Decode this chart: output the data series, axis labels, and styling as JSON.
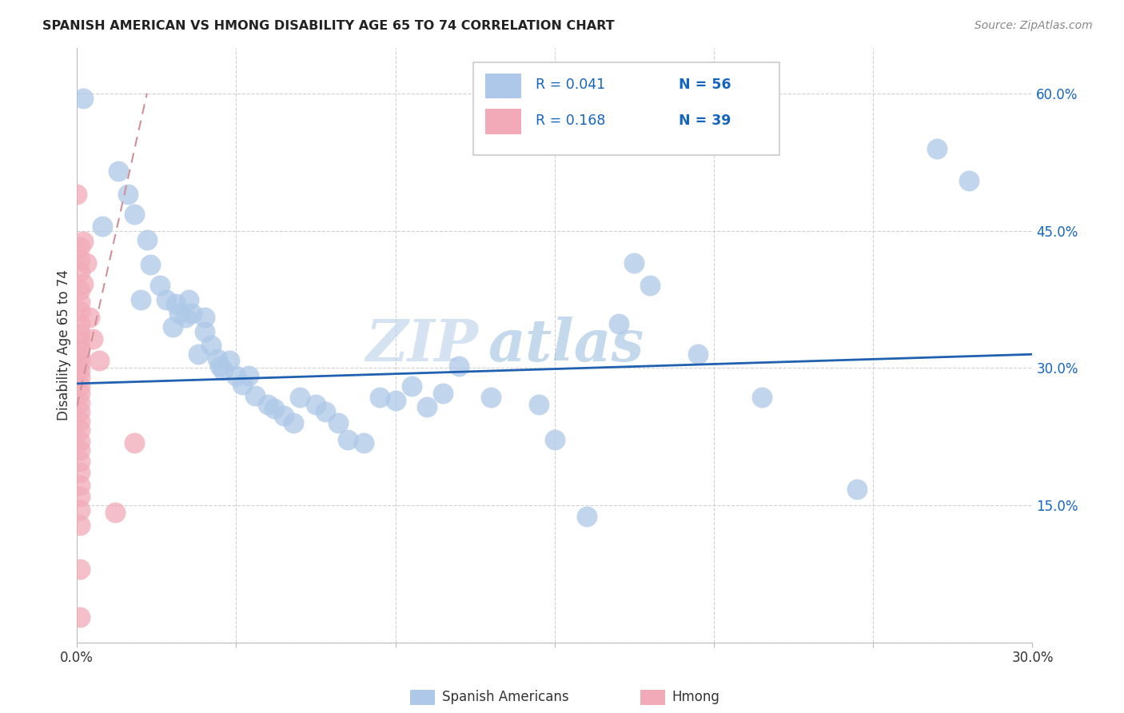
{
  "title": "SPANISH AMERICAN VS HMONG DISABILITY AGE 65 TO 74 CORRELATION CHART",
  "source": "Source: ZipAtlas.com",
  "ylabel": "Disability Age 65 to 74",
  "xlim": [
    0.0,
    0.3
  ],
  "ylim": [
    0.0,
    0.65
  ],
  "x_ticks": [
    0.0,
    0.05,
    0.1,
    0.15,
    0.2,
    0.25,
    0.3
  ],
  "y_ticks": [
    0.0,
    0.15,
    0.3,
    0.45,
    0.6
  ],
  "y_tick_labels_right": [
    "",
    "15.0%",
    "30.0%",
    "45.0%",
    "60.0%"
  ],
  "spanish_color": "#adc8e8",
  "hmong_color": "#f2aab8",
  "trend_spanish_color": "#2060b0",
  "trend_hmong_color": "#d09098",
  "watermark_zip": "ZIP",
  "watermark_atlas": "atlas",
  "spanish_R": "0.041",
  "spanish_N": "56",
  "hmong_R": "0.168",
  "hmong_N": "39",
  "legend_color": "#1565c0",
  "spanish_trend_x": [
    0.0,
    0.3
  ],
  "spanish_trend_y": [
    0.283,
    0.315
  ],
  "hmong_trend_x": [
    0.0,
    0.022
  ],
  "hmong_trend_y": [
    0.258,
    0.6
  ],
  "spanish_points": [
    [
      0.002,
      0.595
    ],
    [
      0.008,
      0.455
    ],
    [
      0.013,
      0.515
    ],
    [
      0.016,
      0.49
    ],
    [
      0.018,
      0.468
    ],
    [
      0.02,
      0.375
    ],
    [
      0.022,
      0.44
    ],
    [
      0.023,
      0.413
    ],
    [
      0.026,
      0.39
    ],
    [
      0.028,
      0.375
    ],
    [
      0.03,
      0.345
    ],
    [
      0.031,
      0.37
    ],
    [
      0.032,
      0.36
    ],
    [
      0.034,
      0.355
    ],
    [
      0.035,
      0.375
    ],
    [
      0.036,
      0.36
    ],
    [
      0.038,
      0.315
    ],
    [
      0.04,
      0.355
    ],
    [
      0.04,
      0.34
    ],
    [
      0.042,
      0.325
    ],
    [
      0.044,
      0.31
    ],
    [
      0.045,
      0.302
    ],
    [
      0.046,
      0.298
    ],
    [
      0.048,
      0.308
    ],
    [
      0.05,
      0.292
    ],
    [
      0.052,
      0.282
    ],
    [
      0.054,
      0.292
    ],
    [
      0.056,
      0.27
    ],
    [
      0.06,
      0.26
    ],
    [
      0.062,
      0.256
    ],
    [
      0.065,
      0.248
    ],
    [
      0.068,
      0.24
    ],
    [
      0.07,
      0.268
    ],
    [
      0.075,
      0.26
    ],
    [
      0.078,
      0.252
    ],
    [
      0.082,
      0.24
    ],
    [
      0.085,
      0.222
    ],
    [
      0.09,
      0.218
    ],
    [
      0.095,
      0.268
    ],
    [
      0.1,
      0.265
    ],
    [
      0.105,
      0.28
    ],
    [
      0.11,
      0.258
    ],
    [
      0.115,
      0.272
    ],
    [
      0.12,
      0.302
    ],
    [
      0.13,
      0.268
    ],
    [
      0.145,
      0.26
    ],
    [
      0.15,
      0.222
    ],
    [
      0.16,
      0.138
    ],
    [
      0.17,
      0.348
    ],
    [
      0.175,
      0.415
    ],
    [
      0.18,
      0.39
    ],
    [
      0.195,
      0.315
    ],
    [
      0.215,
      0.268
    ],
    [
      0.245,
      0.168
    ],
    [
      0.27,
      0.54
    ],
    [
      0.28,
      0.505
    ]
  ],
  "hmong_points": [
    [
      0.0,
      0.49
    ],
    [
      0.001,
      0.432
    ],
    [
      0.001,
      0.418
    ],
    [
      0.001,
      0.405
    ],
    [
      0.001,
      0.385
    ],
    [
      0.001,
      0.372
    ],
    [
      0.001,
      0.362
    ],
    [
      0.001,
      0.348
    ],
    [
      0.001,
      0.338
    ],
    [
      0.001,
      0.328
    ],
    [
      0.001,
      0.32
    ],
    [
      0.001,
      0.312
    ],
    [
      0.001,
      0.305
    ],
    [
      0.001,
      0.298
    ],
    [
      0.001,
      0.29
    ],
    [
      0.001,
      0.28
    ],
    [
      0.001,
      0.272
    ],
    [
      0.001,
      0.262
    ],
    [
      0.001,
      0.252
    ],
    [
      0.001,
      0.242
    ],
    [
      0.001,
      0.232
    ],
    [
      0.001,
      0.22
    ],
    [
      0.001,
      0.21
    ],
    [
      0.001,
      0.198
    ],
    [
      0.001,
      0.186
    ],
    [
      0.001,
      0.172
    ],
    [
      0.001,
      0.16
    ],
    [
      0.001,
      0.145
    ],
    [
      0.001,
      0.128
    ],
    [
      0.001,
      0.08
    ],
    [
      0.001,
      0.028
    ],
    [
      0.002,
      0.438
    ],
    [
      0.002,
      0.392
    ],
    [
      0.003,
      0.415
    ],
    [
      0.004,
      0.355
    ],
    [
      0.005,
      0.332
    ],
    [
      0.007,
      0.308
    ],
    [
      0.012,
      0.142
    ],
    [
      0.018,
      0.218
    ]
  ]
}
